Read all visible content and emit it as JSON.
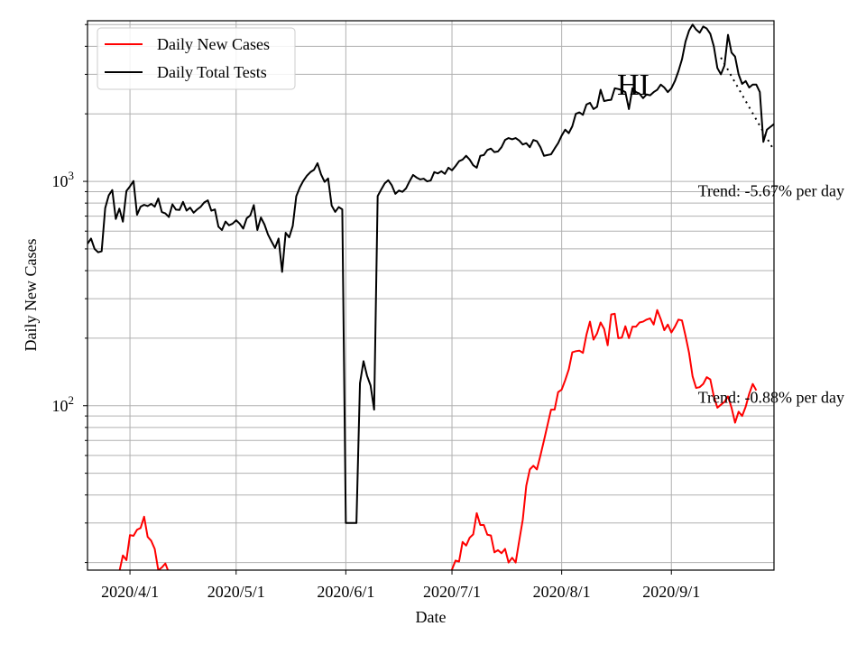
{
  "chart_data": {
    "type": "line",
    "annotation_title": "HI",
    "xlabel": "Date",
    "ylabel": "Daily New Cases",
    "yscale": "log",
    "ylim": [
      18.5,
      5200
    ],
    "xlim": [
      "2020-03-20",
      "2020-09-30"
    ],
    "x_ticks": [
      "2020-04-01",
      "2020-05-01",
      "2020-06-01",
      "2020-07-01",
      "2020-08-01",
      "2020-09-01"
    ],
    "x_tick_labels": [
      "2020/4/1",
      "2020/5/1",
      "2020/6/1",
      "2020/7/1",
      "2020/8/1",
      "2020/9/1"
    ],
    "y_major_ticks": [
      100,
      1000
    ],
    "y_tick_labels": [
      {
        "base": "10",
        "exp": "2"
      },
      {
        "base": "10",
        "exp": "3"
      }
    ],
    "grid": true,
    "legend": {
      "placement": "upper-left",
      "entries": [
        {
          "label": "Daily New Cases",
          "color": "#ff0000"
        },
        {
          "label": "Daily Total Tests",
          "color": "#000000"
        }
      ]
    },
    "annotations": [
      {
        "text": "Trend: -5.67% per day",
        "x": "2020-09-30",
        "y": 860
      },
      {
        "text": "Trend: -0.88% per day",
        "x": "2020-09-30",
        "y": 103
      }
    ],
    "series": [
      {
        "name": "Daily New Cases",
        "color": "#ff0000",
        "segments": [
          {
            "start": "2020-03-28",
            "values": [
              15.6,
              18.2,
              21.5,
              20.5,
              26.5,
              26.3,
              28.0,
              28.5,
              32.0,
              26.0,
              25.0,
              23.0,
              18.5,
              19.0,
              19.8,
              18.0,
              16.0,
              14.0
            ]
          },
          {
            "start": "2020-06-30",
            "values": [
              15.5,
              18.6,
              20.4,
              20.2,
              24.7,
              23.8,
              25.8,
              26.7,
              33.2,
              29.4,
              29.4,
              26.6,
              26.4,
              22.2,
              22.7,
              22.0,
              23.0,
              20.0,
              21.0,
              20.0,
              25.0,
              31.0,
              44.0,
              52.0,
              54.0,
              52.0,
              60.0,
              70.0,
              82.0,
              96.0,
              96.0,
              115.0,
              118.0,
              130.0,
              145.0,
              173.0,
              175.0,
              176.0,
              172.0,
              207.0,
              237.0,
              197.0,
              210.0,
              235.0,
              220.0,
              186.0,
              255.0,
              257.0,
              200.0,
              201.0,
              226.0,
              200.0,
              225.0,
              225.0,
              235.0,
              237.0,
              242.0,
              245.0,
              230.0,
              267.0,
              243.0,
              217.0,
              230.0,
              212.0,
              225.0,
              242.0,
              240.0,
              205.0,
              172.0,
              135.0,
              120.0,
              121.0,
              125.0,
              134.0,
              131.0,
              110.0,
              98.0,
              101.0,
              104.0,
              110.0,
              98.0,
              84.0,
              94.0,
              90.0,
              99.0,
              113.0,
              125.0,
              117.0
            ]
          }
        ]
      },
      {
        "name": "Daily Total Tests",
        "color": "#000000",
        "start": "2020-03-20",
        "values": [
          527,
          556,
          500,
          483,
          488,
          760,
          866,
          915,
          680,
          756,
          661,
          906,
          950,
          1004,
          710,
          771,
          786,
          776,
          794,
          771,
          839,
          730,
          720,
          694,
          790,
          748,
          746,
          810,
          741,
          764,
          725,
          750,
          771,
          806,
          823,
          740,
          750,
          628,
          607,
          662,
          637,
          648,
          671,
          648,
          616,
          685,
          705,
          784,
          607,
          690,
          643,
          580,
          540,
          505,
          556,
          395,
          590,
          563,
          633,
          859,
          940,
          1006,
          1060,
          1100,
          1126,
          1205,
          1074,
          995,
          1030,
          780,
          731,
          768,
          750,
          30,
          30,
          30,
          30,
          126,
          158,
          136,
          123,
          96,
          860,
          920,
          980,
          1012,
          960,
          880,
          910,
          898,
          930,
          1000,
          1068,
          1040,
          1020,
          1028,
          1000,
          1010,
          1100,
          1085,
          1110,
          1080,
          1150,
          1120,
          1170,
          1230,
          1250,
          1300,
          1250,
          1180,
          1150,
          1300,
          1310,
          1380,
          1400,
          1350,
          1360,
          1420,
          1530,
          1560,
          1540,
          1560,
          1520,
          1460,
          1480,
          1420,
          1530,
          1510,
          1420,
          1300,
          1310,
          1320,
          1400,
          1480,
          1600,
          1700,
          1640,
          1760,
          2000,
          2030,
          1980,
          2200,
          2240,
          2100,
          2150,
          2560,
          2280,
          2300,
          2310,
          2600,
          2580,
          2550,
          2500,
          2100,
          2600,
          2500,
          2460,
          2350,
          2440,
          2420,
          2500,
          2560,
          2700,
          2620,
          2500,
          2600,
          2800,
          3100,
          3500,
          4200,
          4700,
          5000,
          4750,
          4600,
          4900,
          4800,
          4550,
          4000,
          3200,
          3000,
          3280,
          4500,
          3750,
          3600,
          3000,
          2720,
          2800,
          2620,
          2700,
          2700,
          2500,
          1500,
          1700,
          1750,
          1800
        ],
        "trend": {
          "start": "2020-09-15",
          "values": [
            3560,
            3340,
            3140,
            2940,
            2760,
            2590,
            2430,
            2280,
            2140,
            2010,
            1885,
            1770,
            1660,
            1560,
            1465,
            1375
          ]
        }
      }
    ]
  }
}
